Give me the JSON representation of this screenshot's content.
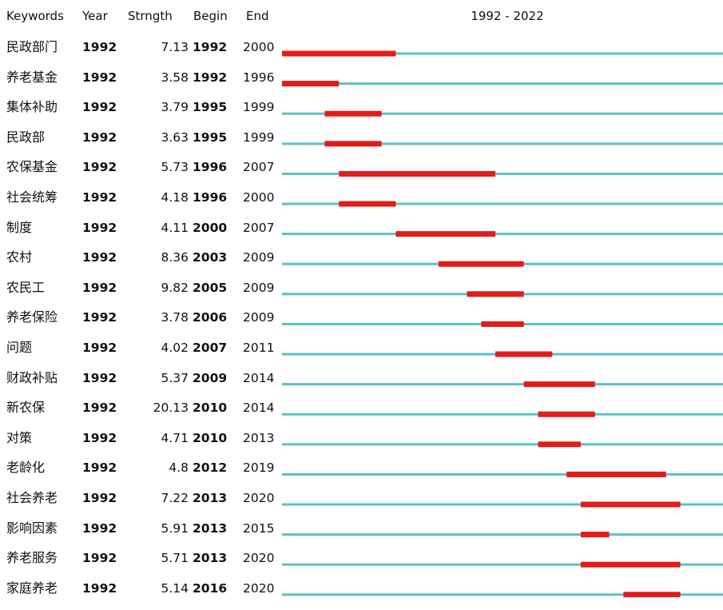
{
  "header": {
    "keywords": "Keywords",
    "year": "Year",
    "strength": "Strngth",
    "begin": "Begin",
    "end": "End",
    "range": "1992 - 2022"
  },
  "chart_data": {
    "type": "timeline",
    "range_start": 1992,
    "range_end": 2022,
    "colors": {
      "baseline": "#5cc0c4",
      "burst": "#e31b1b"
    },
    "rows": [
      {
        "keyword": "民政部门",
        "year": "1992",
        "strength": "7.13",
        "begin": "1992",
        "end": "2000"
      },
      {
        "keyword": "养老基金",
        "year": "1992",
        "strength": "3.58",
        "begin": "1992",
        "end": "1996"
      },
      {
        "keyword": "集体补助",
        "year": "1992",
        "strength": "3.79",
        "begin": "1995",
        "end": "1999"
      },
      {
        "keyword": "民政部",
        "year": "1992",
        "strength": "3.63",
        "begin": "1995",
        "end": "1999"
      },
      {
        "keyword": "农保基金",
        "year": "1992",
        "strength": "5.73",
        "begin": "1996",
        "end": "2007"
      },
      {
        "keyword": "社会统筹",
        "year": "1992",
        "strength": "4.18",
        "begin": "1996",
        "end": "2000"
      },
      {
        "keyword": "制度",
        "year": "1992",
        "strength": "4.11",
        "begin": "2000",
        "end": "2007"
      },
      {
        "keyword": "农村",
        "year": "1992",
        "strength": "8.36",
        "begin": "2003",
        "end": "2009"
      },
      {
        "keyword": "农民工",
        "year": "1992",
        "strength": "9.82",
        "begin": "2005",
        "end": "2009"
      },
      {
        "keyword": "养老保险",
        "year": "1992",
        "strength": "3.78",
        "begin": "2006",
        "end": "2009"
      },
      {
        "keyword": "问题",
        "year": "1992",
        "strength": "4.02",
        "begin": "2007",
        "end": "2011"
      },
      {
        "keyword": "财政补贴",
        "year": "1992",
        "strength": "5.37",
        "begin": "2009",
        "end": "2014"
      },
      {
        "keyword": "新农保",
        "year": "1992",
        "strength": "20.13",
        "begin": "2010",
        "end": "2014"
      },
      {
        "keyword": "对策",
        "year": "1992",
        "strength": "4.71",
        "begin": "2010",
        "end": "2013"
      },
      {
        "keyword": "老龄化",
        "year": "1992",
        "strength": "4.8",
        "begin": "2012",
        "end": "2019"
      },
      {
        "keyword": "社会养老",
        "year": "1992",
        "strength": "7.22",
        "begin": "2013",
        "end": "2020"
      },
      {
        "keyword": "影响因素",
        "year": "1992",
        "strength": "5.91",
        "begin": "2013",
        "end": "2015"
      },
      {
        "keyword": "养老服务",
        "year": "1992",
        "strength": "5.71",
        "begin": "2013",
        "end": "2020"
      },
      {
        "keyword": "家庭养老",
        "year": "1992",
        "strength": "5.14",
        "begin": "2016",
        "end": "2020"
      }
    ]
  }
}
